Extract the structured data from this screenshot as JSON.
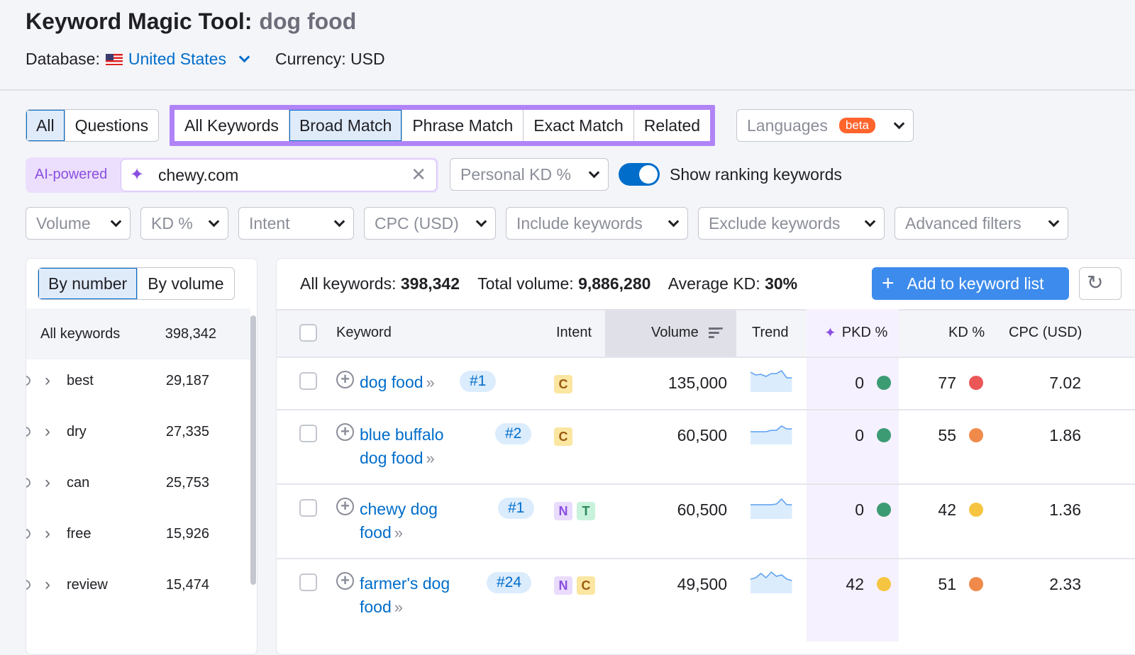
{
  "header": {
    "title": "Keyword Magic Tool:",
    "query": "dog food",
    "database_label": "Database:",
    "database_value": "United States",
    "currency": "Currency: USD"
  },
  "tabs_type": [
    {
      "label": "All",
      "active": true
    },
    {
      "label": "Questions",
      "active": false
    }
  ],
  "tabs_match": [
    {
      "label": "All Keywords",
      "active": false
    },
    {
      "label": "Broad Match",
      "active": true
    },
    {
      "label": "Phrase Match",
      "active": false
    },
    {
      "label": "Exact Match",
      "active": false
    },
    {
      "label": "Related",
      "active": false
    }
  ],
  "languages": {
    "label": "Languages",
    "badge": "beta"
  },
  "ai": {
    "label": "AI-powered",
    "domain": "chewy.com"
  },
  "personal_kd": "Personal KD %",
  "toggle": {
    "label": "Show ranking keywords",
    "on": true
  },
  "filters": [
    "Volume",
    "KD %",
    "Intent",
    "CPC (USD)",
    "Include keywords",
    "Exclude keywords",
    "Advanced filters"
  ],
  "group_tabs": [
    {
      "label": "By number",
      "active": true
    },
    {
      "label": "By volume",
      "active": false
    }
  ],
  "groups": {
    "all_label": "All keywords",
    "all_count": "398,342",
    "items": [
      {
        "name": "best",
        "count": "29,187"
      },
      {
        "name": "dry",
        "count": "27,335"
      },
      {
        "name": "can",
        "count": "25,753"
      },
      {
        "name": "free",
        "count": "15,926"
      },
      {
        "name": "review",
        "count": "15,474"
      }
    ]
  },
  "summary": {
    "all_label": "All keywords:",
    "all_value": "398,342",
    "vol_label": "Total volume:",
    "vol_value": "9,886,280",
    "kd_label": "Average KD:",
    "kd_value": "30%",
    "add_button": "Add to keyword list"
  },
  "columns": {
    "keyword": "Keyword",
    "intent": "Intent",
    "volume": "Volume",
    "trend": "Trend",
    "pkd": "PKD %",
    "kd": "KD %",
    "cpc": "CPC (USD)"
  },
  "colors": {
    "accent": "#006dca",
    "green": "#3d9b74",
    "red": "#eb5757",
    "orange": "#f08a4b",
    "yellow": "#f5c542",
    "purple": "#b084f6"
  },
  "rows": [
    {
      "keyword": "dog food",
      "position": "#1",
      "intent": [
        "C"
      ],
      "volume": "135,000",
      "pkd": "0",
      "pkd_color": "#3d9b74",
      "kd": "77",
      "kd_color": "#eb5757",
      "cpc": "7.02",
      "trend": [
        0.8,
        0.6,
        0.65,
        0.5,
        0.7,
        0.7,
        0.9,
        0.4,
        0.4
      ]
    },
    {
      "keyword": "blue buffalo dog food",
      "position": "#2",
      "intent": [
        "C"
      ],
      "volume": "60,500",
      "pkd": "0",
      "pkd_color": "#3d9b74",
      "kd": "55",
      "kd_color": "#f08a4b",
      "cpc": "1.86",
      "trend": [
        0.3,
        0.3,
        0.3,
        0.3,
        0.4,
        0.4,
        0.7,
        0.5,
        0.5
      ]
    },
    {
      "keyword": "chewy dog food",
      "position": "#1",
      "intent": [
        "N",
        "T"
      ],
      "volume": "60,500",
      "pkd": "0",
      "pkd_color": "#3d9b74",
      "kd": "42",
      "kd_color": "#f5c542",
      "cpc": "1.36",
      "trend": [
        0.4,
        0.4,
        0.4,
        0.4,
        0.4,
        0.45,
        0.8,
        0.4,
        0.4
      ]
    },
    {
      "keyword": "farmer's dog food",
      "position": "#24",
      "intent": [
        "N",
        "C"
      ],
      "volume": "49,500",
      "pkd": "42",
      "pkd_color": "#f5c542",
      "kd": "51",
      "kd_color": "#f08a4b",
      "cpc": "2.33",
      "trend": [
        0.4,
        0.5,
        0.8,
        0.5,
        0.9,
        0.6,
        0.7,
        0.4,
        0.3
      ]
    }
  ]
}
